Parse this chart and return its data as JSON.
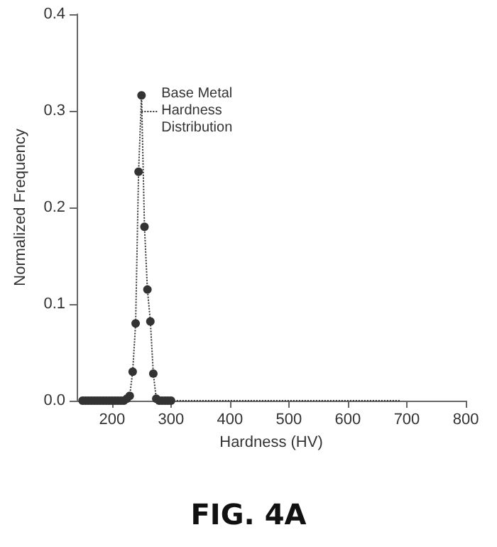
{
  "chart_data": {
    "type": "line",
    "title": "FIG. 4A",
    "xlabel": "Hardness (HV)",
    "ylabel": "Normalized Frequency",
    "xlim": [
      140,
      800
    ],
    "xticks": [
      200,
      300,
      400,
      500,
      600,
      700,
      800
    ],
    "ylim": [
      0,
      0.4
    ],
    "yticks": [
      {
        "value": 0,
        "label": "0.0"
      },
      {
        "value": 0.1,
        "label": "0.1"
      },
      {
        "value": 0.2,
        "label": "0.2"
      },
      {
        "value": 0.3,
        "label": "0.3"
      },
      {
        "value": 0.4,
        "label": "0.4"
      }
    ],
    "series": [
      {
        "color": "#333333",
        "marker": "circle",
        "line_style": "dotted",
        "x": [
          150,
          155,
          160,
          165,
          170,
          175,
          180,
          185,
          190,
          195,
          200,
          205,
          210,
          215,
          220,
          225,
          230,
          235,
          240,
          245,
          250,
          255,
          260,
          265,
          270,
          275,
          280,
          285,
          290,
          295,
          300
        ],
        "values": [
          0,
          0,
          0,
          0,
          0,
          0,
          0,
          0,
          0,
          0,
          0,
          0,
          0,
          0,
          0,
          0.002,
          0.005,
          0.03,
          0.08,
          0.237,
          0.316,
          0.18,
          0.115,
          0.082,
          0.028,
          0.002,
          0,
          0,
          0,
          0,
          0
        ]
      },
      {
        "color": "#333333",
        "marker": "none",
        "line_style": "dotted",
        "x": [
          300,
          690
        ],
        "values": [
          0,
          0
        ]
      }
    ],
    "annotations": [
      {
        "text": "Base Metal\nHardness\nDistribution",
        "x": 250,
        "y": 0.3
      }
    ],
    "grid": false
  }
}
